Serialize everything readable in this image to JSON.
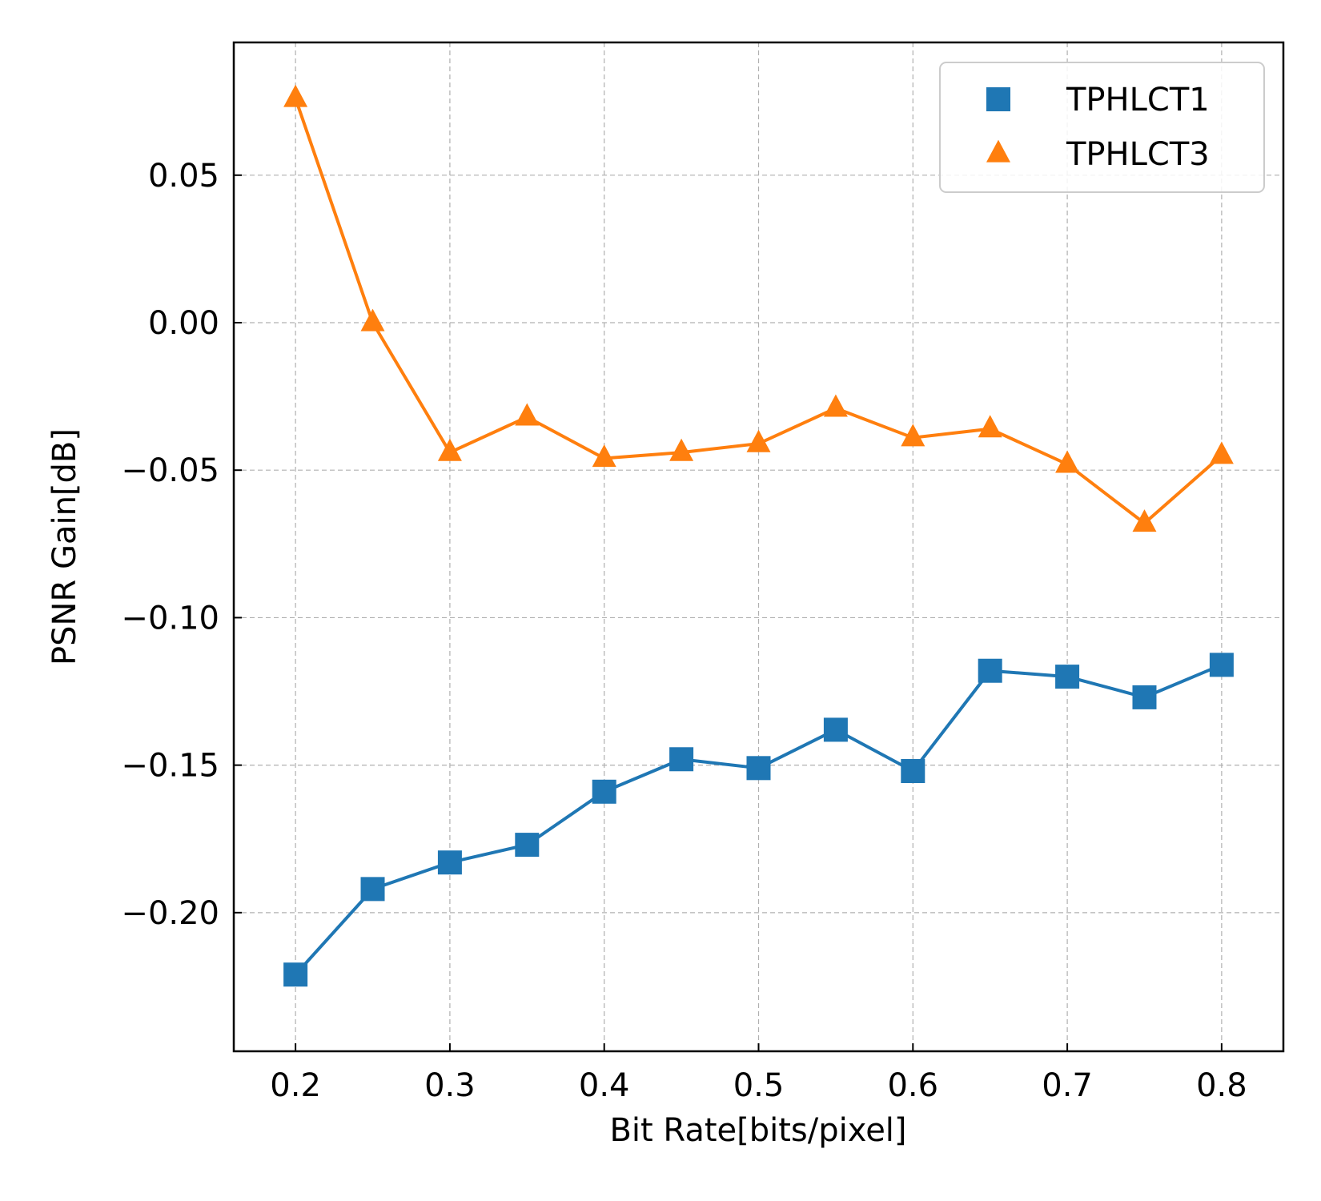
{
  "chart_data": {
    "type": "line",
    "xlabel": "Bit Rate[bits/pixel]",
    "ylabel": "PSNR Gain[dB]",
    "xlim": [
      0.16,
      0.84
    ],
    "ylim": [
      -0.247,
      0.095
    ],
    "xticks": [
      0.2,
      0.3,
      0.4,
      0.5,
      0.6,
      0.7,
      0.8
    ],
    "xtick_labels": [
      "0.2",
      "0.3",
      "0.4",
      "0.5",
      "0.6",
      "0.7",
      "0.8"
    ],
    "yticks": [
      0.05,
      0.0,
      -0.05,
      -0.1,
      -0.15,
      -0.2
    ],
    "ytick_labels": [
      "0.05",
      "0.00",
      "−0.05",
      "−0.10",
      "−0.15",
      "−0.20"
    ],
    "grid": true,
    "legend_position": "top-right",
    "x": [
      0.2,
      0.25,
      0.3,
      0.35,
      0.4,
      0.45,
      0.5,
      0.55,
      0.6,
      0.65,
      0.7,
      0.75,
      0.8
    ],
    "series": [
      {
        "name": "TPHLCT1",
        "marker": "square",
        "color": "#1f77b4",
        "values": [
          -0.221,
          -0.192,
          -0.183,
          -0.177,
          -0.159,
          -0.148,
          -0.151,
          -0.138,
          -0.152,
          -0.118,
          -0.12,
          -0.127,
          -0.116
        ]
      },
      {
        "name": "TPHLCT3",
        "marker": "triangle",
        "color": "#ff7f0e",
        "values": [
          0.076,
          0.0,
          -0.044,
          -0.032,
          -0.046,
          -0.044,
          -0.041,
          -0.029,
          -0.039,
          -0.036,
          -0.048,
          -0.068,
          -0.045
        ]
      }
    ]
  }
}
